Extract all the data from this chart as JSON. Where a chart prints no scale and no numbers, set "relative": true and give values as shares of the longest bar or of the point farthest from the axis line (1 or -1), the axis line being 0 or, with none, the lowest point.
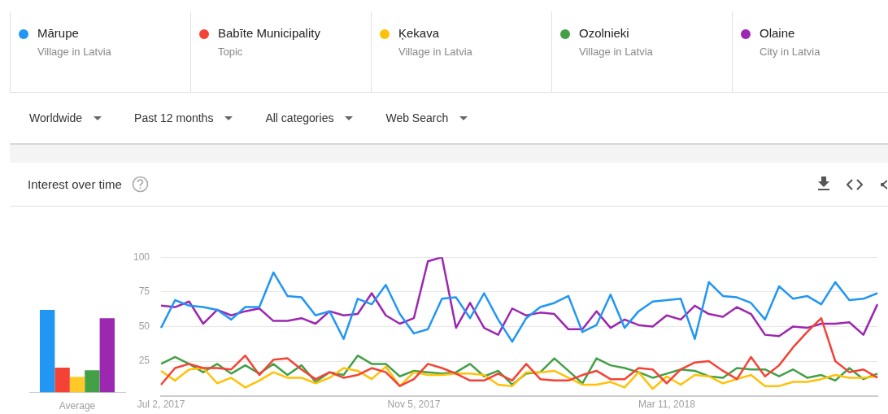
{
  "chart_data": [
    {
      "type": "other",
      "annotations": [
        "Worldwide",
        "Past 12 months",
        "All categories",
        "Web Search"
      ]
    },
    {
      "type": "bar",
      "categories": [
        "Average"
      ],
      "relative": true,
      "series": [
        {
          "color": "#2196f3",
          "values": [
            1
          ]
        },
        {
          "color": "#f44336",
          "values": [
            0.3
          ]
        },
        {
          "color": "#ffca28",
          "values": [
            0.19
          ]
        },
        {
          "color": "#43a047",
          "values": [
            0.27
          ]
        },
        {
          "color": "#9c27b0",
          "values": [
            0.9
          ]
        }
      ]
    },
    {
      "type": "line",
      "title": "Interest over time",
      "legend": "top",
      "marker": "none",
      "grid": "y",
      "ylim": [
        0,
        100
      ],
      "yticks": [
        25,
        50,
        75,
        100
      ],
      "annotations": [
        "Village in Latvia",
        "Topic",
        "Village in Latvia",
        "Village in Latvia",
        "City in Latvia"
      ],
      "categories": [
        "Jul 2, 2017",
        null,
        null,
        null,
        null,
        null,
        null,
        null,
        null,
        null,
        null,
        null,
        null,
        null,
        null,
        null,
        null,
        null,
        "Nov 5, 2017",
        null,
        null,
        null,
        null,
        null,
        null,
        null,
        null,
        null,
        null,
        null,
        null,
        null,
        null,
        null,
        null,
        null,
        "Mar 11, 2018",
        null,
        null,
        null,
        null,
        null,
        null,
        null,
        null,
        null,
        null,
        null,
        null,
        null,
        null,
        null
      ],
      "series": [
        {
          "name": "Mārupe",
          "color": "#2196f3",
          "values": [
            49,
            69,
            65,
            64,
            62,
            55,
            64,
            64,
            89,
            72,
            71,
            58,
            61,
            41,
            70,
            66,
            80,
            59,
            45,
            48,
            70,
            71,
            56,
            74,
            55,
            39,
            56,
            64,
            67,
            72,
            46,
            51,
            73,
            49,
            61,
            68,
            69,
            70,
            41,
            82,
            72,
            71,
            67,
            55,
            79,
            70,
            72,
            66,
            82,
            69,
            70,
            74
          ]
        },
        {
          "name": "Babīte Municipality",
          "color": "#f44336",
          "values": [
            8,
            20,
            23,
            20,
            20,
            19,
            29,
            15,
            26,
            27,
            19,
            12,
            17,
            13,
            15,
            20,
            17,
            7,
            12,
            23,
            20,
            16,
            11,
            11,
            16,
            11,
            23,
            12,
            11,
            11,
            15,
            18,
            12,
            12,
            20,
            19,
            9,
            19,
            24,
            25,
            18,
            12,
            28,
            14,
            22,
            35,
            46,
            56,
            25,
            17,
            19,
            13
          ]
        },
        {
          "name": "Ķekava",
          "color": "#ffc107",
          "values": [
            18,
            11,
            19,
            20,
            9,
            13,
            6,
            11,
            17,
            13,
            13,
            9,
            13,
            20,
            18,
            12,
            21,
            7,
            17,
            15,
            15,
            16,
            16,
            15,
            8,
            7,
            17,
            17,
            18,
            13,
            8,
            8,
            10,
            6,
            17,
            5,
            14,
            8,
            15,
            14,
            9,
            12,
            15,
            7,
            7,
            10,
            10,
            12,
            15,
            13,
            13,
            14
          ]
        },
        {
          "name": "Ozolnieki",
          "color": "#43a047",
          "values": [
            23,
            28,
            23,
            17,
            23,
            16,
            22,
            16,
            23,
            15,
            22,
            10,
            17,
            15,
            29,
            23,
            23,
            14,
            18,
            17,
            16,
            17,
            23,
            14,
            18,
            8,
            16,
            17,
            27,
            18,
            9,
            27,
            22,
            20,
            17,
            13,
            16,
            19,
            18,
            14,
            13,
            20,
            19,
            19,
            14,
            19,
            13,
            15,
            11,
            20,
            12,
            16
          ]
        },
        {
          "name": "Olaine",
          "color": "#9c27b0",
          "values": [
            65,
            64,
            68,
            52,
            62,
            58,
            61,
            63,
            54,
            54,
            56,
            52,
            61,
            58,
            59,
            74,
            58,
            52,
            56,
            97,
            100,
            49,
            67,
            49,
            44,
            63,
            58,
            60,
            59,
            48,
            48,
            61,
            49,
            55,
            51,
            50,
            58,
            55,
            65,
            59,
            57,
            64,
            59,
            44,
            43,
            50,
            49,
            52,
            52,
            53,
            44,
            66
          ]
        }
      ]
    }
  ]
}
